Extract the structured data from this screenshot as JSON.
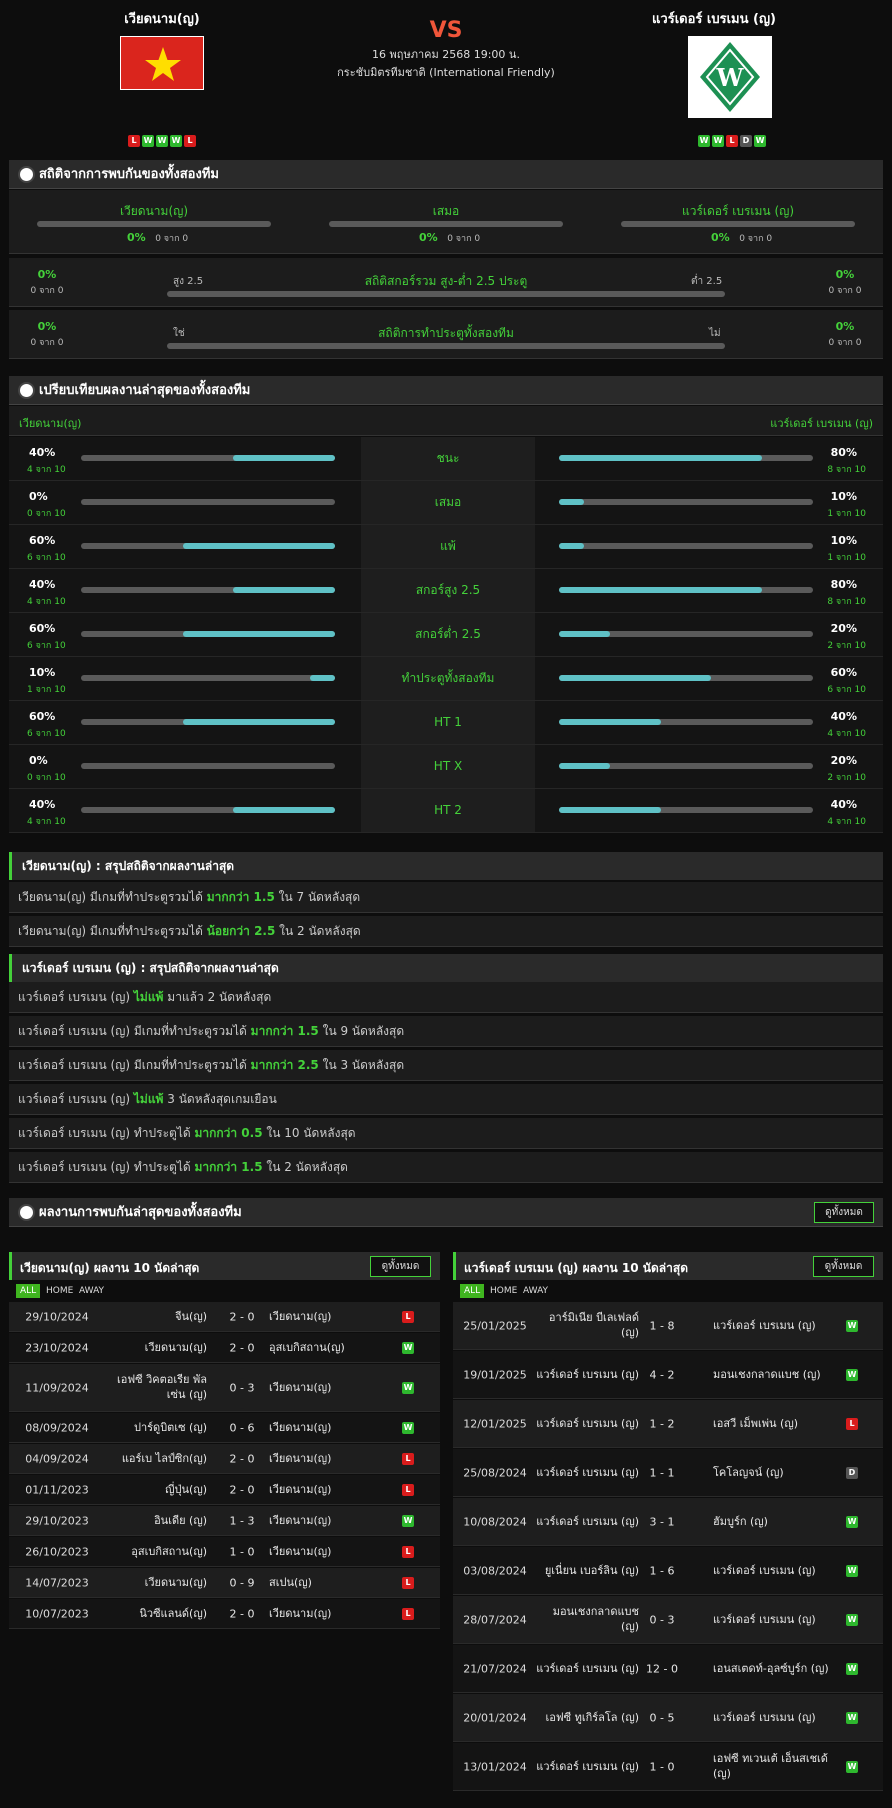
{
  "header": {
    "home_team": "เวียดนาม(ญ)",
    "away_team": "แวร์เดอร์ เบรเมน (ญ)",
    "vs": "VS",
    "date": "16 พฤษภาคม 2568 19:00 น.",
    "competition": "กระชับมิตรทีมชาติ (International Friendly)",
    "home_form": [
      "L",
      "W",
      "W",
      "W",
      "L"
    ],
    "away_form": [
      "W",
      "W",
      "L",
      "D",
      "W"
    ]
  },
  "h2h": {
    "title": "สถิติจากการพบกันของทั้งสองทีม",
    "cols": [
      {
        "label": "เวียดนาม(ญ)",
        "pct": "0%",
        "sub": "0 จาก 0"
      },
      {
        "label": "เสมอ",
        "pct": "0%",
        "sub": "0 จาก 0"
      },
      {
        "label": "แวร์เดอร์ เบรเมน (ญ)",
        "pct": "0%",
        "sub": "0 จาก 0"
      }
    ],
    "ou": {
      "title": "สถิติสกอร์รวม สูง-ต่ำ 2.5 ประตู",
      "left_label": "สูง 2.5",
      "right_label": "ต่ำ 2.5",
      "left_pct": "0%",
      "left_sub": "0 จาก 0",
      "right_pct": "0%",
      "right_sub": "0 จาก 0"
    },
    "btts": {
      "title": "สถิติการทำประตูทั้งสองทีม",
      "left_label": "ใช่",
      "right_label": "ไม่",
      "left_pct": "0%",
      "left_sub": "0 จาก 0",
      "right_pct": "0%",
      "right_sub": "0 จาก 0"
    }
  },
  "compare": {
    "title": "เปรียบเทียบผลงานล่าสุดของทั้งสองทีม",
    "home": "เวียดนาม(ญ)",
    "away": "แวร์เดอร์ เบรเมน (ญ)",
    "rows": [
      {
        "label": "ชนะ",
        "lp": "40%",
        "ls": "4 จาก 10",
        "lv": 0.4,
        "rp": "80%",
        "rs": "8 จาก 10",
        "rv": 0.8
      },
      {
        "label": "เสมอ",
        "lp": "0%",
        "ls": "0 จาก 10",
        "lv": 0,
        "rp": "10%",
        "rs": "1 จาก 10",
        "rv": 0.1
      },
      {
        "label": "แพ้",
        "lp": "60%",
        "ls": "6 จาก 10",
        "lv": 0.6,
        "rp": "10%",
        "rs": "1 จาก 10",
        "rv": 0.1
      },
      {
        "label": "สกอร์สูง 2.5",
        "lp": "40%",
        "ls": "4 จาก 10",
        "lv": 0.4,
        "rp": "80%",
        "rs": "8 จาก 10",
        "rv": 0.8
      },
      {
        "label": "สกอร์ต่ำ 2.5",
        "lp": "60%",
        "ls": "6 จาก 10",
        "lv": 0.6,
        "rp": "20%",
        "rs": "2 จาก 10",
        "rv": 0.2
      },
      {
        "label": "ทำประตูทั้งสองทีม",
        "lp": "10%",
        "ls": "1 จาก 10",
        "lv": 0.1,
        "rp": "60%",
        "rs": "6 จาก 10",
        "rv": 0.6
      },
      {
        "label": "HT 1",
        "lp": "60%",
        "ls": "6 จาก 10",
        "lv": 0.6,
        "rp": "40%",
        "rs": "4 จาก 10",
        "rv": 0.4
      },
      {
        "label": "HT X",
        "lp": "0%",
        "ls": "0 จาก 10",
        "lv": 0,
        "rp": "20%",
        "rs": "2 จาก 10",
        "rv": 0.2
      },
      {
        "label": "HT 2",
        "lp": "40%",
        "ls": "4 จาก 10",
        "lv": 0.4,
        "rp": "40%",
        "rs": "4 จาก 10",
        "rv": 0.4
      }
    ]
  },
  "summary_home": {
    "title": "เวียดนาม(ญ) : สรุปสถิติจากผลงานล่าสุด",
    "rows": [
      {
        "a": "เวียดนาม(ญ) มีเกมที่ทำประตูรวมได้ ",
        "h": "มากกว่า 1.5",
        "b": " ใน 7 นัดหลังสุด"
      },
      {
        "a": "เวียดนาม(ญ) มีเกมที่ทำประตูรวมได้ ",
        "h": "น้อยกว่า 2.5",
        "b": " ใน 2 นัดหลังสุด"
      }
    ]
  },
  "summary_away": {
    "title": "แวร์เดอร์ เบรเมน (ญ) : สรุปสถิติจากผลงานล่าสุด",
    "rows": [
      {
        "a": "แวร์เดอร์ เบรเมน (ญ) ",
        "h": "ไม่แพ้",
        "b": " มาแล้ว 2 นัดหลังสุด"
      },
      {
        "a": "แวร์เดอร์ เบรเมน (ญ) มีเกมที่ทำประตูรวมได้ ",
        "h": "มากกว่า 1.5",
        "b": " ใน 9 นัดหลังสุด"
      },
      {
        "a": "แวร์เดอร์ เบรเมน (ญ) มีเกมที่ทำประตูรวมได้ ",
        "h": "มากกว่า 2.5",
        "b": " ใน 3 นัดหลังสุด"
      },
      {
        "a": "แวร์เดอร์ เบรเมน (ญ) ",
        "h": "ไม่แพ้",
        "b": " 3 นัดหลังสุดเกมเยือน"
      },
      {
        "a": "แวร์เดอร์ เบรเมน (ญ) ทำประตูได้ ",
        "h": "มากกว่า 0.5",
        "b": " ใน 10 นัดหลังสุด"
      },
      {
        "a": "แวร์เดอร์ เบรเมน (ญ) ทำประตูได้ ",
        "h": "มากกว่า 1.5",
        "b": " ใน 2 นัดหลังสุด"
      }
    ]
  },
  "recent": {
    "title": "ผลงานการพบกันล่าสุดของทั้งสองทีม",
    "view_all": "ดูทั้งหมด",
    "home_title": "เวียดนาม(ญ) ผลงาน 10 นัดล่าสุด",
    "away_title": "แวร์เดอร์ เบรเมน (ญ) ผลงาน 10 นัดล่าสุด",
    "tabs": [
      "ALL",
      "HOME",
      "AWAY"
    ],
    "home_matches": [
      {
        "date": "29/10/2024",
        "home": "จีน(ญ)",
        "score": "2 - 0",
        "away": "เวียดนาม(ญ)",
        "r": "L"
      },
      {
        "date": "23/10/2024",
        "home": "เวียดนาม(ญ)",
        "score": "2 - 0",
        "away": "อุสเบกิสถาน(ญ)",
        "r": "W"
      },
      {
        "date": "11/09/2024",
        "home": "เอฟซี วิคตอเรีย พัลเซ่น (ญ)",
        "score": "0 - 3",
        "away": "เวียดนาม(ญ)",
        "r": "W"
      },
      {
        "date": "08/09/2024",
        "home": "ปาร์ดูบิตเซ (ญ)",
        "score": "0 - 6",
        "away": "เวียดนาม(ญ)",
        "r": "W"
      },
      {
        "date": "04/09/2024",
        "home": "แอร์เบ ไลป์ซิก(ญ)",
        "score": "2 - 0",
        "away": "เวียดนาม(ญ)",
        "r": "L"
      },
      {
        "date": "01/11/2023",
        "home": "ญี่ปุ่น(ญ)",
        "score": "2 - 0",
        "away": "เวียดนาม(ญ)",
        "r": "L"
      },
      {
        "date": "29/10/2023",
        "home": "อินเดีย (ญ)",
        "score": "1 - 3",
        "away": "เวียดนาม(ญ)",
        "r": "W"
      },
      {
        "date": "26/10/2023",
        "home": "อุสเบกิสถาน(ญ)",
        "score": "1 - 0",
        "away": "เวียดนาม(ญ)",
        "r": "L"
      },
      {
        "date": "14/07/2023",
        "home": "เวียดนาม(ญ)",
        "score": "0 - 9",
        "away": "สเปน(ญ)",
        "r": "L"
      },
      {
        "date": "10/07/2023",
        "home": "นิวซีแลนด์(ญ)",
        "score": "2 - 0",
        "away": "เวียดนาม(ญ)",
        "r": "L"
      }
    ],
    "away_matches": [
      {
        "date": "25/01/2025",
        "home": "อาร์มิเนีย บีเลเฟลด์ (ญ)",
        "score": "1 - 8",
        "away": "แวร์เดอร์ เบรเมน (ญ)",
        "r": "W"
      },
      {
        "date": "19/01/2025",
        "home": "แวร์เดอร์ เบรเมน (ญ)",
        "score": "4 - 2",
        "away": "มอนเชงกลาดแบช (ญ)",
        "r": "W"
      },
      {
        "date": "12/01/2025",
        "home": "แวร์เดอร์ เบรเมน (ญ)",
        "score": "1 - 2",
        "away": "เอสวี เม็พเพ่น (ญ)",
        "r": "L"
      },
      {
        "date": "25/08/2024",
        "home": "แวร์เดอร์ เบรเมน (ญ)",
        "score": "1 - 1",
        "away": "โคโลญจน์ (ญ)",
        "r": "D"
      },
      {
        "date": "10/08/2024",
        "home": "แวร์เดอร์ เบรเมน (ญ)",
        "score": "3 - 1",
        "away": "ฮัมบูร์ก (ญ)",
        "r": "W"
      },
      {
        "date": "03/08/2024",
        "home": "ยูเนี่ยน เบอร์ลิน (ญ)",
        "score": "1 - 6",
        "away": "แวร์เดอร์ เบรเมน (ญ)",
        "r": "W"
      },
      {
        "date": "28/07/2024",
        "home": "มอนเชงกลาดแบช (ญ)",
        "score": "0 - 3",
        "away": "แวร์เดอร์ เบรเมน (ญ)",
        "r": "W"
      },
      {
        "date": "21/07/2024",
        "home": "แวร์เดอร์ เบรเมน (ญ)",
        "score": "12 - 0",
        "away": "เอนสเตดท์-อุลซ์บูร์ก (ญ)",
        "r": "W"
      },
      {
        "date": "20/01/2024",
        "home": "เอฟซี ทูเกิร์ลโล (ญ)",
        "score": "0 - 5",
        "away": "แวร์เดอร์ เบรเมน (ญ)",
        "r": "W"
      },
      {
        "date": "13/01/2024",
        "home": "แวร์เดอร์ เบรเมน (ญ)",
        "score": "1 - 0",
        "away": "เอฟซี ทเวนเต้ เอ็นสเชเด้ (ญ)",
        "r": "W"
      }
    ]
  },
  "colors": {
    "accent": "#44d13a",
    "bar_fill": "#5fc1c6",
    "win": "#2eb82e",
    "loss": "#d91c1c",
    "draw": "#555555"
  }
}
